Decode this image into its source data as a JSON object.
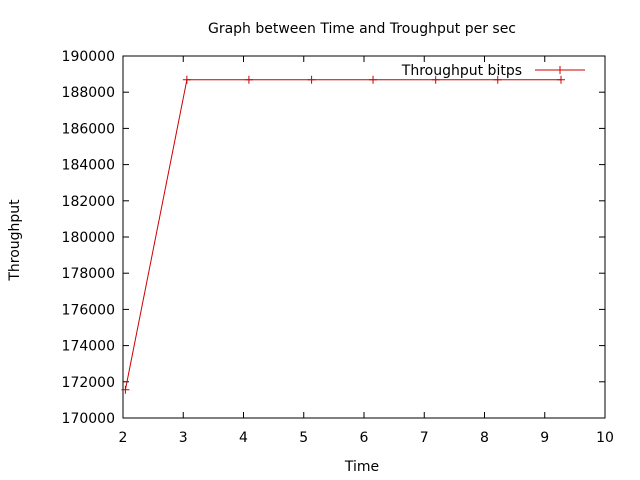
{
  "chart_data": {
    "type": "line",
    "title": "Graph between Time and Troughput per sec",
    "xlabel": "Time",
    "ylabel": "Throughput",
    "xlim": [
      2,
      10
    ],
    "ylim": [
      170000,
      190000
    ],
    "xticks": [
      2,
      3,
      4,
      5,
      6,
      7,
      8,
      9,
      10
    ],
    "yticks": [
      170000,
      172000,
      174000,
      176000,
      178000,
      180000,
      182000,
      184000,
      186000,
      188000,
      190000
    ],
    "grid": false,
    "legend_position": "top-right",
    "series": [
      {
        "name": "Throughput bitps",
        "color": "#cc0000",
        "marker": "plus",
        "x": [
          2.04,
          3.06,
          4.09,
          5.13,
          6.15,
          7.19,
          8.22,
          9.27
        ],
        "y": [
          171560,
          188690,
          188690,
          188690,
          188690,
          188690,
          188690,
          188690
        ]
      }
    ]
  }
}
